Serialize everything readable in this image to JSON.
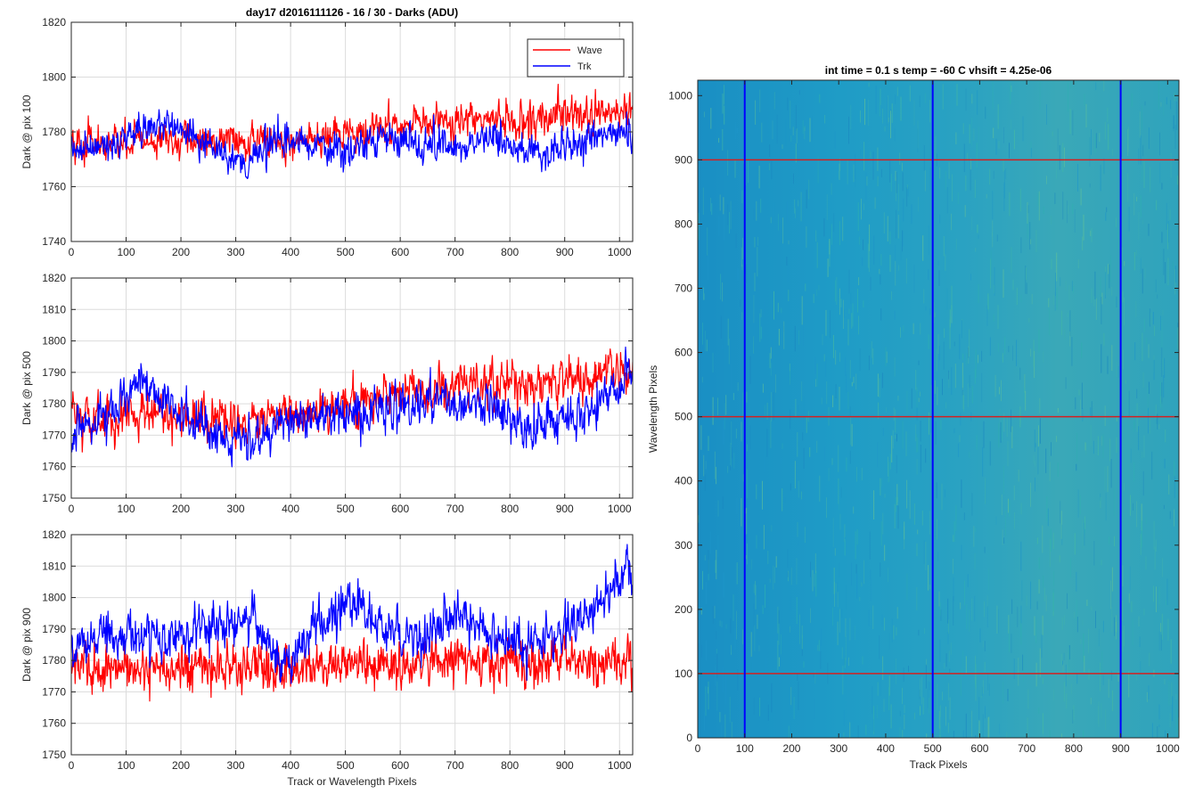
{
  "figure": {
    "title_left": "day17 d2016111126 - 16 / 30 - Darks (ADU)",
    "title_right": "int time = 0.1 s   temp = -60 C   vhsift = 4.25e-06"
  },
  "chart_data": [
    {
      "type": "line",
      "title": "day17 d2016111126 - 16 / 30 - Darks (ADU)",
      "xlabel": "",
      "ylabel": "Dark @ pix 100",
      "xlim": [
        0,
        1024
      ],
      "ylim": [
        1740,
        1820
      ],
      "xticks": [
        0,
        100,
        200,
        300,
        400,
        500,
        600,
        700,
        800,
        900,
        1000
      ],
      "yticks": [
        1740,
        1760,
        1780,
        1800,
        1820
      ],
      "grid": true,
      "legend": "top-right",
      "series": [
        {
          "name": "Wave",
          "color": "#ff0000",
          "x": [
            0,
            64,
            128,
            192,
            256,
            320,
            384,
            448,
            512,
            576,
            640,
            704,
            768,
            832,
            896,
            960,
            1024
          ],
          "values": [
            1776,
            1775,
            1777,
            1776,
            1777,
            1778,
            1776,
            1777,
            1779,
            1782,
            1783,
            1783,
            1785,
            1784,
            1786,
            1786,
            1787
          ]
        },
        {
          "name": "Trk",
          "color": "#0000ff",
          "x": [
            0,
            64,
            128,
            192,
            256,
            320,
            384,
            448,
            512,
            576,
            640,
            704,
            768,
            832,
            896,
            960,
            1024
          ],
          "values": [
            1772,
            1775,
            1781,
            1782,
            1775,
            1769,
            1778,
            1775,
            1774,
            1778,
            1776,
            1775,
            1778,
            1772,
            1774,
            1780,
            1780
          ]
        }
      ]
    },
    {
      "type": "line",
      "xlabel": "",
      "ylabel": "Dark @ pix 500",
      "xlim": [
        0,
        1024
      ],
      "ylim": [
        1750,
        1820
      ],
      "xticks": [
        0,
        100,
        200,
        300,
        400,
        500,
        600,
        700,
        800,
        900,
        1000
      ],
      "yticks": [
        1750,
        1760,
        1770,
        1780,
        1790,
        1800,
        1810,
        1820
      ],
      "grid": true,
      "series": [
        {
          "name": "Wave",
          "color": "#ff0000",
          "x": [
            0,
            64,
            128,
            192,
            256,
            320,
            384,
            448,
            512,
            576,
            640,
            704,
            768,
            832,
            896,
            960,
            1024
          ],
          "values": [
            1776,
            1775,
            1778,
            1776,
            1774,
            1773,
            1776,
            1778,
            1780,
            1782,
            1784,
            1785,
            1788,
            1786,
            1787,
            1788,
            1790
          ]
        },
        {
          "name": "Trk",
          "color": "#0000ff",
          "x": [
            0,
            64,
            128,
            192,
            256,
            320,
            384,
            448,
            512,
            576,
            640,
            704,
            768,
            832,
            896,
            960,
            1024
          ],
          "values": [
            1770,
            1776,
            1788,
            1778,
            1771,
            1769,
            1772,
            1776,
            1775,
            1779,
            1781,
            1780,
            1779,
            1772,
            1775,
            1778,
            1792
          ]
        }
      ]
    },
    {
      "type": "line",
      "xlabel": "Track or Wavelength Pixels",
      "ylabel": "Dark @ pix 900",
      "xlim": [
        0,
        1024
      ],
      "ylim": [
        1750,
        1820
      ],
      "xticks": [
        0,
        100,
        200,
        300,
        400,
        500,
        600,
        700,
        800,
        900,
        1000
      ],
      "yticks": [
        1750,
        1760,
        1770,
        1780,
        1790,
        1800,
        1810,
        1820
      ],
      "grid": true,
      "series": [
        {
          "name": "Wave",
          "color": "#ff0000",
          "x": [
            0,
            64,
            128,
            192,
            256,
            320,
            384,
            448,
            512,
            576,
            640,
            704,
            768,
            832,
            896,
            960,
            1024
          ],
          "values": [
            1778,
            1777,
            1778,
            1777,
            1778,
            1779,
            1776,
            1778,
            1779,
            1778,
            1779,
            1780,
            1780,
            1778,
            1781,
            1780,
            1781
          ]
        },
        {
          "name": "Trk",
          "color": "#0000ff",
          "x": [
            0,
            64,
            128,
            192,
            256,
            320,
            384,
            448,
            512,
            576,
            640,
            704,
            768,
            832,
            896,
            960,
            1024
          ],
          "values": [
            1782,
            1790,
            1787,
            1786,
            1792,
            1794,
            1777,
            1792,
            1800,
            1789,
            1786,
            1795,
            1787,
            1784,
            1790,
            1798,
            1810
          ]
        }
      ]
    },
    {
      "type": "heatmap",
      "title": "int time = 0.1 s   temp = -60 C   vhsift = 4.25e-06",
      "xlabel": "Track Pixels",
      "ylabel": "Wavelength Pixels",
      "xlim": [
        0,
        1024
      ],
      "ylim": [
        0,
        1024
      ],
      "xticks": [
        0,
        100,
        200,
        300,
        400,
        500,
        600,
        700,
        800,
        900,
        1000
      ],
      "yticks": [
        0,
        100,
        200,
        300,
        400,
        500,
        600,
        700,
        800,
        900,
        1000
      ],
      "grid": false,
      "base_color": "#1f9fc8",
      "vertical_markers": [
        100,
        500,
        900
      ],
      "vertical_marker_color": "#0000ff",
      "horizontal_markers": [
        100,
        500,
        900
      ],
      "horizontal_marker_color": "#d42020"
    }
  ]
}
